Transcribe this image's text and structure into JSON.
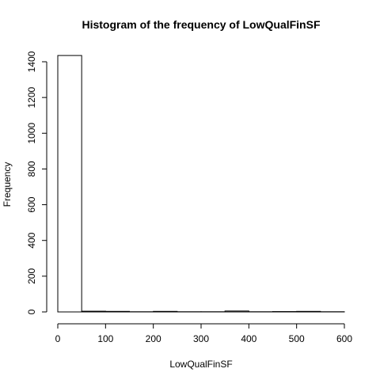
{
  "chart_data": {
    "type": "bar",
    "title": "Histogram of the frequency of LowQualFinSF",
    "xlabel": "LowQualFinSF",
    "ylabel": "Frequency",
    "xlim": [
      0,
      600
    ],
    "ylim": [
      0,
      1400
    ],
    "xticks": [
      0,
      100,
      200,
      300,
      400,
      500,
      600
    ],
    "yticks": [
      0,
      200,
      400,
      600,
      800,
      1000,
      1200,
      1400
    ],
    "bins": [
      {
        "x0": 0,
        "x1": 50,
        "value": 1435
      },
      {
        "x0": 50,
        "x1": 100,
        "value": 4
      },
      {
        "x0": 100,
        "x1": 150,
        "value": 3
      },
      {
        "x0": 150,
        "x1": 200,
        "value": 1
      },
      {
        "x0": 200,
        "x1": 250,
        "value": 3
      },
      {
        "x0": 250,
        "x1": 300,
        "value": 1
      },
      {
        "x0": 300,
        "x1": 350,
        "value": 1
      },
      {
        "x0": 350,
        "x1": 400,
        "value": 5
      },
      {
        "x0": 400,
        "x1": 450,
        "value": 1
      },
      {
        "x0": 450,
        "x1": 500,
        "value": 2
      },
      {
        "x0": 500,
        "x1": 550,
        "value": 3
      },
      {
        "x0": 550,
        "x1": 600,
        "value": 1
      }
    ],
    "grid": false,
    "legend": "none"
  }
}
